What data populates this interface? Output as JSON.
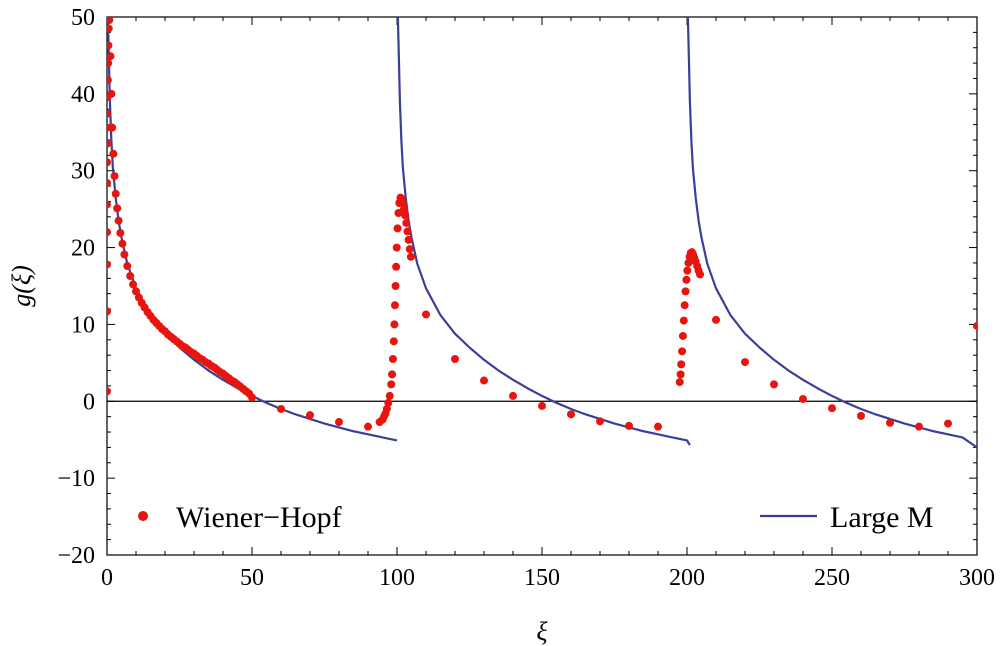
{
  "chart_data": {
    "type": "line+scatter",
    "xlabel": "ξ",
    "ylabel": "g(ξ)",
    "xlim": [
      0,
      300
    ],
    "ylim": [
      -20,
      50
    ],
    "xticks": [
      0,
      50,
      100,
      150,
      200,
      250,
      300
    ],
    "yticks": [
      -20,
      -10,
      0,
      10,
      20,
      30,
      40,
      50
    ],
    "xtick_labels": [
      "0",
      "50",
      "100",
      "150",
      "200",
      "250",
      "300"
    ],
    "ytick_labels": [
      "−20",
      "−10",
      "0",
      "10",
      "20",
      "30",
      "40",
      "50"
    ],
    "colors": {
      "line": "#3b3f9c",
      "points": "#e8140f",
      "zero_line": "#000000"
    },
    "legend": [
      {
        "label": "Wiener−Hopf",
        "kind": "points"
      },
      {
        "label": "Large M",
        "kind": "line"
      }
    ],
    "series": [
      {
        "name": "Large M",
        "kind": "line",
        "segments": [
          [
            [
              0.3,
              50
            ],
            [
              0.5,
              47
            ],
            [
              1,
              39
            ],
            [
              1.5,
              34
            ],
            [
              2,
              30.5
            ],
            [
              3,
              26.5
            ],
            [
              4,
              23.5
            ],
            [
              5,
              21.3
            ],
            [
              7,
              17.9
            ],
            [
              10,
              14.7
            ],
            [
              15,
              11.2
            ],
            [
              20,
              8.8
            ],
            [
              25,
              7
            ],
            [
              30,
              5.4
            ],
            [
              35,
              4
            ],
            [
              40,
              2.8
            ],
            [
              45,
              1.7
            ],
            [
              50,
              0.7
            ],
            [
              55,
              -0.2
            ],
            [
              60,
              -1
            ],
            [
              65,
              -1.7
            ],
            [
              70,
              -2.3
            ],
            [
              75,
              -2.9
            ],
            [
              80,
              -3.4
            ],
            [
              85,
              -3.9
            ],
            [
              90,
              -4.3
            ],
            [
              95,
              -4.7
            ],
            [
              100,
              -5.1
            ]
          ],
          [
            [
              100.3,
              50
            ],
            [
              100.5,
              47
            ],
            [
              101,
              39
            ],
            [
              101.5,
              34
            ],
            [
              102,
              30.5
            ],
            [
              103,
              26.5
            ],
            [
              104,
              23.5
            ],
            [
              105,
              21.3
            ],
            [
              107,
              17.9
            ],
            [
              110,
              14.7
            ],
            [
              115,
              11.2
            ],
            [
              120,
              8.8
            ],
            [
              125,
              7
            ],
            [
              130,
              5.4
            ],
            [
              135,
              4
            ],
            [
              140,
              2.8
            ],
            [
              145,
              1.7
            ],
            [
              150,
              0.7
            ],
            [
              155,
              -0.2
            ],
            [
              160,
              -1
            ],
            [
              165,
              -1.7
            ],
            [
              170,
              -2.3
            ],
            [
              175,
              -2.9
            ],
            [
              180,
              -3.4
            ],
            [
              185,
              -3.9
            ],
            [
              190,
              -4.3
            ],
            [
              195,
              -4.7
            ],
            [
              200,
              -5.1
            ],
            [
              201,
              -5.7
            ]
          ],
          [
            [
              200.3,
              50
            ],
            [
              200.5,
              47
            ],
            [
              201,
              39
            ],
            [
              201.5,
              34
            ],
            [
              202,
              30.5
            ],
            [
              203,
              26.5
            ],
            [
              204,
              23.5
            ],
            [
              205,
              21.3
            ],
            [
              207,
              17.9
            ],
            [
              210,
              14.7
            ],
            [
              215,
              11.2
            ],
            [
              220,
              8.8
            ],
            [
              225,
              7
            ],
            [
              230,
              5.4
            ],
            [
              235,
              4
            ],
            [
              240,
              2.8
            ],
            [
              245,
              1.7
            ],
            [
              250,
              0.7
            ],
            [
              255,
              -0.2
            ],
            [
              260,
              -1
            ],
            [
              265,
              -1.7
            ],
            [
              270,
              -2.3
            ],
            [
              275,
              -2.9
            ],
            [
              280,
              -3.4
            ],
            [
              285,
              -3.9
            ],
            [
              290,
              -4.3
            ],
            [
              295,
              -4.7
            ],
            [
              300,
              -6
            ]
          ]
        ]
      },
      {
        "name": "Wiener−Hopf",
        "kind": "points",
        "points": [
          [
            0,
            1.3
          ],
          [
            0,
            11.7
          ],
          [
            0,
            17.8
          ],
          [
            0,
            22
          ],
          [
            0,
            25.6
          ],
          [
            0,
            28.4
          ],
          [
            0,
            31.1
          ],
          [
            0,
            33.5
          ],
          [
            0,
            35.6
          ],
          [
            0,
            37.4
          ],
          [
            0.2,
            39.6
          ],
          [
            0.3,
            41.8
          ],
          [
            0.4,
            44
          ],
          [
            0.5,
            46.3
          ],
          [
            0.6,
            48.5
          ],
          [
            0.8,
            49.6
          ],
          [
            1.2,
            44.9
          ],
          [
            1.5,
            40
          ],
          [
            1.8,
            35.6
          ],
          [
            2.2,
            32.2
          ],
          [
            2.6,
            29.3
          ],
          [
            3,
            27
          ],
          [
            3.5,
            25.1
          ],
          [
            4,
            23.5
          ],
          [
            4.6,
            21.9
          ],
          [
            5.3,
            20.5
          ],
          [
            6,
            19.1
          ],
          [
            7,
            17.6
          ],
          [
            8,
            16.3
          ],
          [
            9,
            15.2
          ],
          [
            10,
            14.3
          ],
          [
            11,
            13.5
          ],
          [
            12,
            12.8
          ],
          [
            13,
            12.2
          ],
          [
            14,
            11.6
          ],
          [
            15,
            11.1
          ],
          [
            16,
            10.6
          ],
          [
            17,
            10.2
          ],
          [
            18,
            9.8
          ],
          [
            19,
            9.4
          ],
          [
            20,
            9.1
          ],
          [
            21,
            8.7
          ],
          [
            22,
            8.4
          ],
          [
            23,
            8.1
          ],
          [
            24,
            7.8
          ],
          [
            25,
            7.5
          ],
          [
            26,
            7.2
          ],
          [
            27,
            7
          ],
          [
            28,
            6.7
          ],
          [
            29,
            6.4
          ],
          [
            30,
            6.2
          ],
          [
            31,
            5.9
          ],
          [
            32,
            5.6
          ],
          [
            33,
            5.4
          ],
          [
            34,
            5.1
          ],
          [
            35,
            4.9
          ],
          [
            36,
            4.6
          ],
          [
            37,
            4.4
          ],
          [
            38,
            4.1
          ],
          [
            39,
            3.8
          ],
          [
            40,
            3.6
          ],
          [
            41,
            3.3
          ],
          [
            42,
            3
          ],
          [
            43,
            2.7
          ],
          [
            44,
            2.5
          ],
          [
            45,
            2.2
          ],
          [
            46,
            1.9
          ],
          [
            47,
            1.6
          ],
          [
            48,
            1.3
          ],
          [
            49,
            1
          ],
          [
            50,
            0.5
          ],
          [
            60,
            -1
          ],
          [
            70,
            -1.8
          ],
          [
            80,
            -2.7
          ],
          [
            90,
            -3.3
          ],
          [
            94,
            -2.7
          ],
          [
            95,
            -2.4
          ],
          [
            95.5,
            -2
          ],
          [
            96,
            -1.6
          ],
          [
            96.5,
            -1
          ],
          [
            97,
            -0.2
          ],
          [
            97.5,
            0.7
          ],
          [
            98,
            2.2
          ],
          [
            98.3,
            3.5
          ],
          [
            98.6,
            5.5
          ],
          [
            98.9,
            7.8
          ],
          [
            99.1,
            10
          ],
          [
            99.3,
            12.5
          ],
          [
            99.5,
            15
          ],
          [
            99.7,
            17.5
          ],
          [
            99.9,
            20
          ],
          [
            100.2,
            22.5
          ],
          [
            100.5,
            24.5
          ],
          [
            100.8,
            25.8
          ],
          [
            101.2,
            26.5
          ],
          [
            101.6,
            26.3
          ],
          [
            102,
            25.8
          ],
          [
            102.4,
            25
          ],
          [
            102.8,
            24.2
          ],
          [
            103.2,
            23.2
          ],
          [
            103.6,
            22.1
          ],
          [
            104,
            21
          ],
          [
            104.4,
            19.8
          ],
          [
            104.8,
            18.8
          ],
          [
            110,
            11.3
          ],
          [
            120,
            5.5
          ],
          [
            130,
            2.7
          ],
          [
            140,
            0.7
          ],
          [
            150,
            -0.6
          ],
          [
            160,
            -1.7
          ],
          [
            170,
            -2.6
          ],
          [
            180,
            -3.2
          ],
          [
            190,
            -3.3
          ],
          [
            197.5,
            2.5
          ],
          [
            197.8,
            3.5
          ],
          [
            198,
            4.8
          ],
          [
            198.3,
            6.5
          ],
          [
            198.6,
            8.5
          ],
          [
            198.9,
            10.5
          ],
          [
            199.2,
            12.5
          ],
          [
            199.5,
            14.3
          ],
          [
            199.8,
            15.8
          ],
          [
            200.1,
            17
          ],
          [
            200.5,
            18
          ],
          [
            200.9,
            18.8
          ],
          [
            201.3,
            19.3
          ],
          [
            201.7,
            19.4
          ],
          [
            202.1,
            19.1
          ],
          [
            202.5,
            18.7
          ],
          [
            203,
            18.2
          ],
          [
            203.5,
            17.6
          ],
          [
            204,
            17
          ],
          [
            204.5,
            16.5
          ],
          [
            210,
            10.6
          ],
          [
            220,
            5.1
          ],
          [
            230,
            2.2
          ],
          [
            240,
            0.3
          ],
          [
            250,
            -0.9
          ],
          [
            260,
            -1.9
          ],
          [
            270,
            -2.8
          ],
          [
            280,
            -3.3
          ],
          [
            290,
            -2.9
          ],
          [
            300,
            9.8
          ]
        ]
      }
    ]
  }
}
